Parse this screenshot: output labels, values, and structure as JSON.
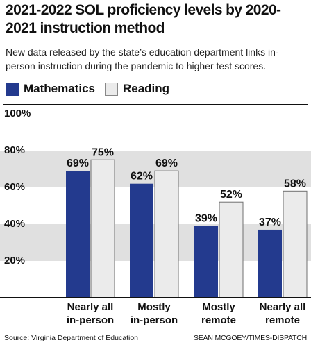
{
  "header": {
    "title": "2021-2022 SOL proficiency levels by 2020-2021 instruction method",
    "subtitle": "New data released by the state’s education department links in-person instruction during the pandemic to higher test scores."
  },
  "footer": {
    "source": "Source: Virginia Department of Education",
    "credit": "SEAN MCGOEY/TIMES-DISPATCH"
  },
  "colors": {
    "mathematics": "#233a8e",
    "reading": "#ebebeb",
    "band": "#e0e0e0"
  },
  "chart_data": {
    "type": "bar",
    "categories": [
      [
        "Nearly all",
        "in-person"
      ],
      [
        "Mostly",
        "in-person"
      ],
      [
        "Mostly",
        "remote"
      ],
      [
        "Nearly all",
        "remote"
      ]
    ],
    "series": [
      {
        "name": "Mathematics",
        "values": [
          69,
          62,
          39,
          37
        ],
        "labels": [
          "69%",
          "62%",
          "39%",
          "37%"
        ]
      },
      {
        "name": "Reading",
        "values": [
          75,
          69,
          52,
          58
        ],
        "labels": [
          "75%",
          "69%",
          "52%",
          "58%"
        ]
      }
    ],
    "ylim": [
      0,
      100
    ],
    "yticks": [
      20,
      40,
      60,
      80,
      100
    ],
    "ytick_labels": [
      "20%",
      "40%",
      "60%",
      "80%",
      "100%"
    ],
    "shaded_bands": [
      [
        20,
        40
      ],
      [
        60,
        80
      ]
    ],
    "legend_position": "top-left",
    "grid": false
  }
}
